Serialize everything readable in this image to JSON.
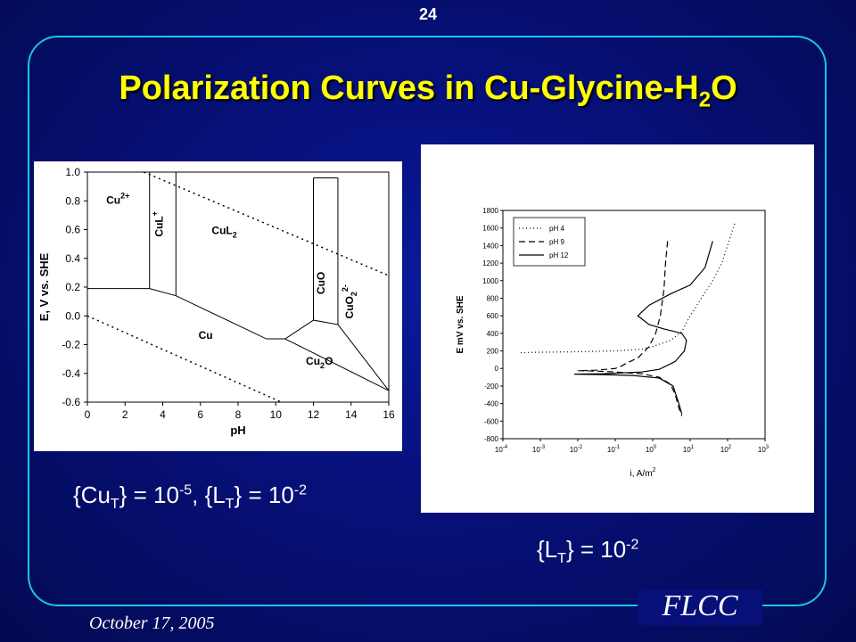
{
  "slide": {
    "page_number": "24",
    "title_main": "Polarization Curves in Cu-Glycine-H",
    "title_sub": "2",
    "title_end": "O",
    "date": "October 17, 2005",
    "footer_logo": "FLCC"
  },
  "captions": {
    "left": {
      "p1": "{Cu",
      "s1": "T",
      "p2": "} = 10",
      "e1": "-5",
      "p3": ", {L",
      "s2": "T",
      "p4": "} = 10",
      "e2": "-2"
    },
    "right": {
      "p1": "{L",
      "s1": "T",
      "p2": "} = 10",
      "e1": "-2"
    }
  },
  "colors": {
    "title": "#ffff00",
    "frame": "#19c6e6",
    "background": "#061078"
  },
  "chart_data": [
    {
      "type": "diagram",
      "xlabel": "pH",
      "ylabel": "E, V vs. SHE",
      "xlim": [
        0,
        16
      ],
      "ylim": [
        -0.6,
        1.0
      ],
      "x_ticks": [
        "0",
        "2",
        "4",
        "6",
        "8",
        "10",
        "12",
        "14",
        "16"
      ],
      "y_ticks": [
        "1.0",
        "0.8",
        "0.6",
        "0.4",
        "0.2",
        "0.0",
        "-0.2",
        "-0.4",
        "-0.6"
      ],
      "region_labels": [
        {
          "main": "Cu",
          "sup": "2+",
          "sub": "",
          "x": 1.0,
          "y": 0.78,
          "rotate": false
        },
        {
          "main": "CuL",
          "sup": "+",
          "sub": "",
          "x": 4.0,
          "y": 0.55,
          "rotate": true
        },
        {
          "main": "CuL",
          "sup": "",
          "sub": "2",
          "x": 6.6,
          "y": 0.57,
          "rotate": false
        },
        {
          "main": "CuO",
          "sup": "",
          "sub": "",
          "x": 12.6,
          "y": 0.15,
          "rotate": true
        },
        {
          "main": "CuO",
          "sup": "2-",
          "sub": "2",
          "x": 14.1,
          "y": -0.02,
          "rotate": true
        },
        {
          "main": "Cu",
          "sup": "",
          "sub": "",
          "x": 5.9,
          "y": -0.16,
          "rotate": false
        },
        {
          "main": "Cu",
          "sup": "",
          "sub": "2",
          "x2": "O",
          "x": 11.6,
          "y": -0.34,
          "rotate": false
        }
      ],
      "boundaries": [
        [
          [
            0,
            0.19
          ],
          [
            3.3,
            0.19
          ],
          [
            4.7,
            0.14
          ],
          [
            9.5,
            -0.16
          ],
          [
            10.5,
            -0.16
          ],
          [
            12,
            -0.03
          ],
          [
            13.3,
            -0.06
          ],
          [
            16,
            -0.52
          ]
        ],
        [
          [
            3.3,
            0.19
          ],
          [
            3.3,
            1.0
          ]
        ],
        [
          [
            4.7,
            0.14
          ],
          [
            4.7,
            1.0
          ]
        ],
        [
          [
            12,
            -0.03
          ],
          [
            12,
            0.96
          ]
        ],
        [
          [
            13.3,
            -0.06
          ],
          [
            13.3,
            0.96
          ]
        ],
        [
          [
            12,
            0.96
          ],
          [
            13.3,
            0.96
          ]
        ],
        [
          [
            10.5,
            -0.16
          ],
          [
            16,
            -0.52
          ]
        ]
      ],
      "water_lines": [
        [
          [
            3.0,
            1.0
          ],
          [
            16,
            0.28
          ]
        ],
        [
          [
            0,
            0.0
          ],
          [
            10.3,
            -0.6
          ]
        ]
      ]
    },
    {
      "type": "line",
      "xlabel": "i, A/m",
      "xlabel_sup": "2",
      "ylabel": "E mV vs. SHE",
      "xscale": "log",
      "xlim": [
        0.0001,
        1000
      ],
      "ylim": [
        -800,
        1800
      ],
      "x_ticks": [
        {
          "base": "10",
          "exp": "-4"
        },
        {
          "base": "10",
          "exp": "-3"
        },
        {
          "base": "10",
          "exp": "-2"
        },
        {
          "base": "10",
          "exp": "-1"
        },
        {
          "base": "10",
          "exp": "0"
        },
        {
          "base": "10",
          "exp": "1"
        },
        {
          "base": "10",
          "exp": "2"
        },
        {
          "base": "10",
          "exp": "3"
        }
      ],
      "y_ticks": [
        "1800",
        "1600",
        "1400",
        "1200",
        "1000",
        "800",
        "600",
        "400",
        "200",
        "0",
        "-200",
        "-400",
        "-600",
        "-800"
      ],
      "legend_position": "top-left",
      "series": [
        {
          "name": "pH 4",
          "style": "dotted",
          "points": [
            [
              0.0003,
              180
            ],
            [
              0.001,
              185
            ],
            [
              0.01,
              190
            ],
            [
              0.1,
              200
            ],
            [
              0.5,
              220
            ],
            [
              1,
              250
            ],
            [
              3,
              320
            ],
            [
              6,
              420
            ],
            [
              10,
              600
            ],
            [
              20,
              800
            ],
            [
              40,
              1000
            ],
            [
              70,
              1200
            ],
            [
              100,
              1400
            ],
            [
              130,
              1550
            ],
            [
              160,
              1670
            ]
          ]
        },
        {
          "name": "pH 9",
          "style": "dashed",
          "points": [
            [
              2.5,
              1450
            ],
            [
              2.2,
              1200
            ],
            [
              2.0,
              900
            ],
            [
              1.6,
              600
            ],
            [
              1.2,
              400
            ],
            [
              0.8,
              250
            ],
            [
              0.4,
              120
            ],
            [
              0.2,
              60
            ],
            [
              0.15,
              30
            ],
            [
              0.1,
              0
            ],
            [
              0.03,
              -20
            ],
            [
              0.01,
              -25
            ],
            [
              0.03,
              -30
            ],
            [
              0.1,
              -40
            ],
            [
              0.5,
              -60
            ],
            [
              1.5,
              -100
            ],
            [
              3,
              -180
            ],
            [
              4,
              -300
            ],
            [
              5,
              -450
            ],
            [
              6,
              -540
            ]
          ]
        },
        {
          "name": "pH 12",
          "style": "solid",
          "points": [
            [
              6,
              -520
            ],
            [
              5,
              -400
            ],
            [
              3.5,
              -200
            ],
            [
              1.5,
              -110
            ],
            [
              0.3,
              -80
            ],
            [
              0.05,
              -70
            ],
            [
              0.008,
              -65
            ],
            [
              0.05,
              -60
            ],
            [
              0.5,
              -40
            ],
            [
              1.5,
              -10
            ],
            [
              4,
              80
            ],
            [
              7,
              200
            ],
            [
              8,
              320
            ],
            [
              6,
              400
            ],
            [
              2,
              450
            ],
            [
              0.8,
              500
            ],
            [
              0.4,
              600
            ],
            [
              0.8,
              720
            ],
            [
              3,
              850
            ],
            [
              10,
              950
            ],
            [
              25,
              1150
            ],
            [
              40,
              1450
            ]
          ]
        }
      ]
    }
  ]
}
